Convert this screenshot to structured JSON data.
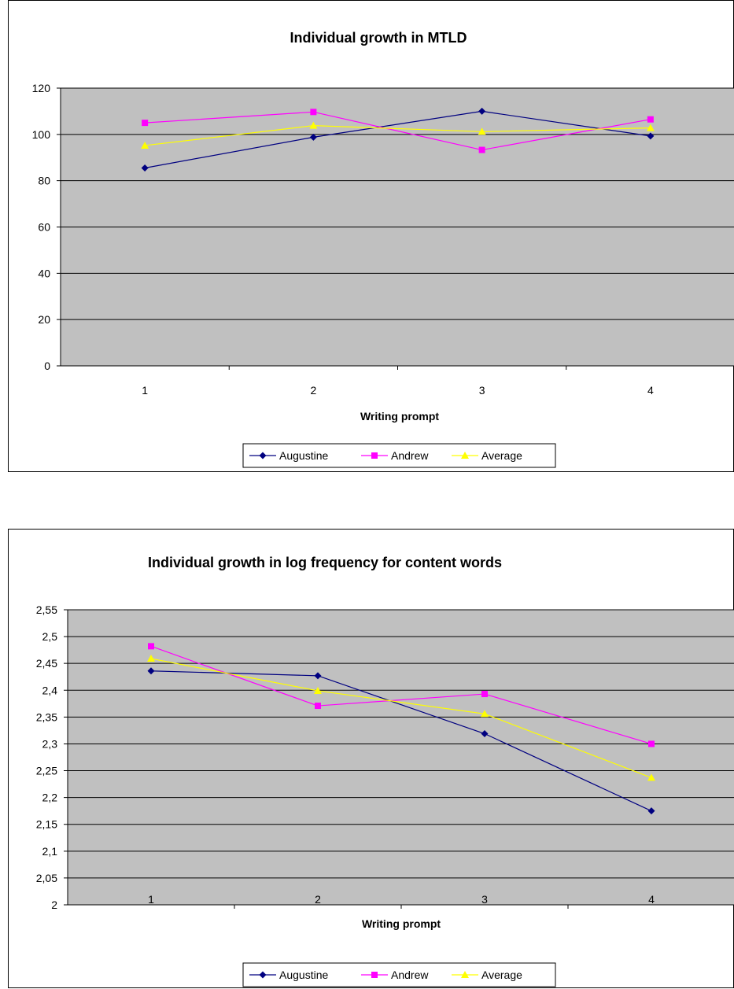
{
  "chart_data": [
    {
      "type": "line",
      "title": "Individual growth in MTLD",
      "xlabel": "Writing prompt",
      "ylabel": "",
      "categories": [
        "1",
        "2",
        "3",
        "4"
      ],
      "ylim": [
        0,
        120
      ],
      "yticks": [
        0,
        20,
        40,
        60,
        80,
        100,
        120
      ],
      "ytick_labels": [
        "0",
        "20",
        "40",
        "60",
        "80",
        "100",
        "120"
      ],
      "series": [
        {
          "name": "Augustine",
          "values": [
            85.5,
            98.8,
            110.0,
            99.3
          ],
          "color": "#000080",
          "marker": "diamond"
        },
        {
          "name": "Andrew",
          "values": [
            105.0,
            109.7,
            93.3,
            106.5
          ],
          "color": "#ff00ff",
          "marker": "square"
        },
        {
          "name": "Average",
          "values": [
            95.2,
            103.8,
            101.2,
            102.8
          ],
          "color": "#ffff00",
          "marker": "triangle"
        }
      ],
      "plot_background": "#c0c0c0",
      "grid": true,
      "legend": "bottom"
    },
    {
      "type": "line",
      "title": "Individual growth in log frequency for content words",
      "xlabel": "Writing prompt",
      "ylabel": "",
      "categories": [
        "1",
        "2",
        "3",
        "4"
      ],
      "ylim": [
        2,
        2.55
      ],
      "yticks": [
        2,
        2.05,
        2.1,
        2.15,
        2.2,
        2.25,
        2.3,
        2.35,
        2.4,
        2.45,
        2.5,
        2.55
      ],
      "ytick_labels": [
        "2",
        "2,05",
        "2,1",
        "2,15",
        "2,2",
        "2,25",
        "2,3",
        "2,35",
        "2,4",
        "2,45",
        "2,5",
        "2,55"
      ],
      "series": [
        {
          "name": "Augustine",
          "values": [
            2.436,
            2.427,
            2.319,
            2.175
          ],
          "color": "#000080",
          "marker": "diamond"
        },
        {
          "name": "Andrew",
          "values": [
            2.482,
            2.371,
            2.393,
            2.3
          ],
          "color": "#ff00ff",
          "marker": "square"
        },
        {
          "name": "Average",
          "values": [
            2.459,
            2.399,
            2.356,
            2.237
          ],
          "color": "#ffff00",
          "marker": "triangle"
        }
      ],
      "plot_background": "#c0c0c0",
      "grid": true,
      "legend": "bottom"
    }
  ]
}
